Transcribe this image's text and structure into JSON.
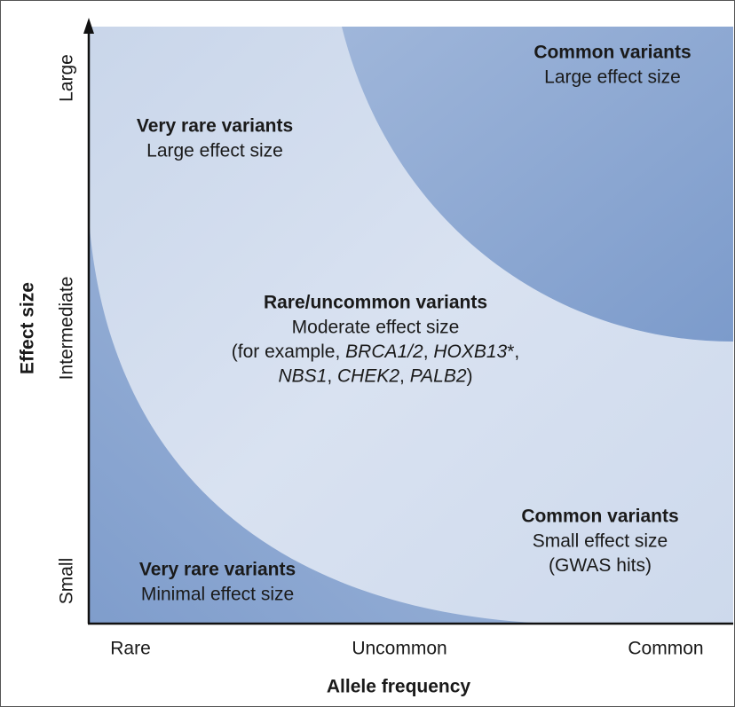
{
  "axes": {
    "x_title": "Allele frequency",
    "x_labels": [
      "Rare",
      "Uncommon",
      "Common"
    ],
    "y_title": "Effect size",
    "y_labels": [
      "Small",
      "Intermediate",
      "Large"
    ]
  },
  "regions": [
    {
      "title": "Common variants",
      "lines": [
        [
          {
            "text": "Large effect size"
          }
        ]
      ]
    },
    {
      "title": "Very rare variants",
      "lines": [
        [
          {
            "text": "Large effect size"
          }
        ]
      ]
    },
    {
      "title": "Rare/uncommon variants",
      "lines": [
        [
          {
            "text": "Moderate effect size"
          }
        ],
        [
          {
            "text": "(for example, "
          },
          {
            "text": "BRCA1/2",
            "italic": true
          },
          {
            "text": ", "
          },
          {
            "text": "HOXB13",
            "italic": true
          },
          {
            "text": "*,"
          }
        ],
        [
          {
            "text": "NBS1",
            "italic": true
          },
          {
            "text": ", "
          },
          {
            "text": "CHEK2",
            "italic": true
          },
          {
            "text": ", "
          },
          {
            "text": "PALB2",
            "italic": true
          },
          {
            "text": ")"
          }
        ]
      ]
    },
    {
      "title": "Common variants",
      "lines": [
        [
          {
            "text": "Small effect size"
          }
        ],
        [
          {
            "text": "(GWAS hits)"
          }
        ]
      ]
    },
    {
      "title": "Very rare variants",
      "lines": [
        [
          {
            "text": "Minimal effect size"
          }
        ]
      ]
    }
  ]
}
